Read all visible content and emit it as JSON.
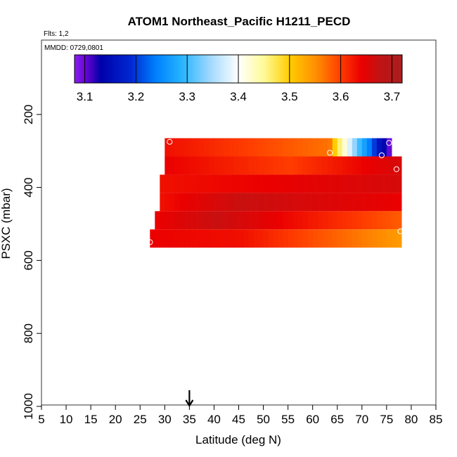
{
  "chart_data": {
    "type": "heatmap",
    "title": "ATOM1 Northeast_Pacific H1211_PECD",
    "subtitle_flights": "Flts: 1,2",
    "subtitle_dates": "MMDD: 0729,0801",
    "xlabel": "Latitude (deg N)",
    "ylabel": "PSXC (mbar)",
    "xlim": [
      5,
      85
    ],
    "ylim": [
      1000,
      0
    ],
    "x_ticks": [
      5,
      10,
      15,
      20,
      25,
      30,
      35,
      40,
      45,
      50,
      55,
      60,
      65,
      70,
      75,
      80,
      85
    ],
    "y_ticks": [
      200,
      400,
      600,
      800,
      1000
    ],
    "colorbar": {
      "min": 3.08,
      "max": 3.72,
      "ticks": [
        3.1,
        3.2,
        3.3,
        3.4,
        3.5,
        3.6,
        3.7
      ],
      "tick_labels": [
        "3.1",
        "3.2",
        "3.3",
        "3.4",
        "3.5",
        "3.6",
        "3.7"
      ]
    },
    "arrow_latitude": 35,
    "layers": [
      {
        "p_top": 265,
        "p_bot": 315,
        "lat_start": 30,
        "lat_end": 76,
        "v_start": 3.63,
        "v_mid": 3.57,
        "v_end": 3.5,
        "mid_lat": 62,
        "tail": [
          [
            64,
            3.5
          ],
          [
            65,
            3.46
          ],
          [
            66,
            3.42
          ],
          [
            67,
            3.38
          ],
          [
            68,
            3.34
          ],
          [
            69,
            3.3
          ],
          [
            70,
            3.27
          ],
          [
            71,
            3.24
          ],
          [
            72,
            3.2
          ],
          [
            73,
            3.16
          ],
          [
            74,
            3.14
          ],
          [
            75,
            3.1
          ]
        ]
      },
      {
        "p_top": 315,
        "p_bot": 365,
        "lat_start": 30,
        "lat_end": 78,
        "v_start": 3.64,
        "v_mid": 3.6,
        "v_end": 3.66,
        "mid_lat": 55
      },
      {
        "p_top": 365,
        "p_bot": 415,
        "lat_start": 29,
        "lat_end": 78,
        "v_start": 3.63,
        "v_mid": 3.64,
        "v_end": 3.66,
        "mid_lat": 50
      },
      {
        "p_top": 415,
        "p_bot": 465,
        "lat_start": 29,
        "lat_end": 78,
        "v_start": 3.63,
        "v_mid": 3.67,
        "v_end": 3.64,
        "mid_lat": 45
      },
      {
        "p_top": 465,
        "p_bot": 515,
        "lat_start": 28,
        "lat_end": 78,
        "v_start": 3.64,
        "v_mid": 3.67,
        "v_end": 3.58,
        "mid_lat": 40
      },
      {
        "p_top": 515,
        "p_bot": 565,
        "lat_start": 27,
        "lat_end": 78,
        "v_start": 3.64,
        "v_mid": 3.63,
        "v_end": 3.54,
        "mid_lat": 45
      }
    ],
    "markers": [
      [
        31,
        275
      ],
      [
        63.5,
        305
      ],
      [
        74,
        312
      ],
      [
        75.5,
        278
      ],
      [
        77,
        350
      ],
      [
        77.8,
        520
      ],
      [
        27,
        550
      ]
    ]
  }
}
